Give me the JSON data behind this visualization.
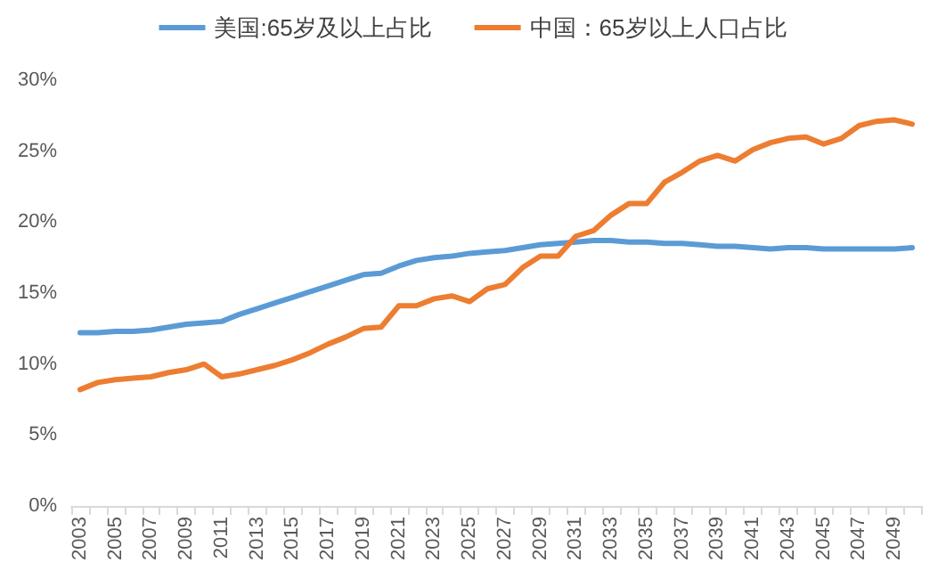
{
  "chart_data": {
    "type": "line",
    "categories": [
      "2003",
      null,
      "2005",
      null,
      "2007",
      null,
      "2009",
      null,
      "2011",
      null,
      "2013",
      null,
      "2015",
      null,
      "2017",
      null,
      "2019",
      null,
      "2021",
      null,
      "2023",
      null,
      "2025",
      null,
      "2027",
      null,
      "2029",
      null,
      "2031",
      null,
      "2033",
      null,
      "2035",
      null,
      "2037",
      null,
      "2039",
      null,
      "2041",
      null,
      "2043",
      null,
      "2045",
      null,
      "2047",
      null,
      "2049",
      null
    ],
    "series": [
      {
        "name": "美国:65岁及以上占比",
        "color": "#5b9bd5",
        "values": [
          12.2,
          12.2,
          12.3,
          12.3,
          12.4,
          12.6,
          12.8,
          12.9,
          13.0,
          13.5,
          13.9,
          14.3,
          14.7,
          15.1,
          15.5,
          15.9,
          16.3,
          16.4,
          16.9,
          17.3,
          17.5,
          17.6,
          17.8,
          17.9,
          18.0,
          18.2,
          18.4,
          18.5,
          18.6,
          18.7,
          18.7,
          18.6,
          18.6,
          18.5,
          18.5,
          18.4,
          18.3,
          18.3,
          18.2,
          18.1,
          18.2,
          18.2,
          18.1,
          18.1,
          18.1,
          18.1,
          18.1,
          18.2
        ]
      },
      {
        "name": "中国：65岁以上人口占比",
        "color": "#ed7d31",
        "values": [
          8.2,
          8.7,
          8.9,
          9.0,
          9.1,
          9.4,
          9.6,
          10.0,
          9.1,
          9.3,
          9.6,
          9.9,
          10.3,
          10.8,
          11.4,
          11.9,
          12.5,
          12.6,
          14.1,
          14.1,
          14.6,
          14.8,
          14.4,
          15.3,
          15.6,
          16.8,
          17.6,
          17.6,
          19.0,
          19.4,
          20.5,
          21.3,
          21.3,
          22.8,
          23.5,
          24.3,
          24.7,
          24.3,
          25.1,
          25.6,
          25.9,
          26.0,
          25.5,
          25.9,
          26.8,
          27.1,
          27.2,
          26.9
        ]
      }
    ],
    "ylim": [
      0,
      30
    ],
    "yticks": [
      {
        "value": 0,
        "label": "0%"
      },
      {
        "value": 5,
        "label": "5%"
      },
      {
        "value": 10,
        "label": "10%"
      },
      {
        "value": 15,
        "label": "15%"
      },
      {
        "value": 20,
        "label": "20%"
      },
      {
        "value": 25,
        "label": "25%"
      },
      {
        "value": 30,
        "label": "30%"
      }
    ],
    "grid": false,
    "legend": "top",
    "marker": "none",
    "line_style": "solid"
  }
}
